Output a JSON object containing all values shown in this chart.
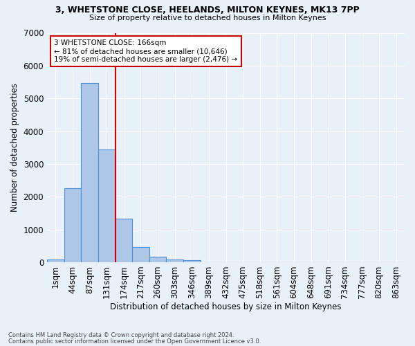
{
  "title_line1": "3, WHETSTONE CLOSE, HEELANDS, MILTON KEYNES, MK13 7PP",
  "title_line2": "Size of property relative to detached houses in Milton Keynes",
  "xlabel": "Distribution of detached houses by size in Milton Keynes",
  "ylabel": "Number of detached properties",
  "footnote1": "Contains HM Land Registry data © Crown copyright and database right 2024.",
  "footnote2": "Contains public sector information licensed under the Open Government Licence v3.0.",
  "bar_labels": [
    "1sqm",
    "44sqm",
    "87sqm",
    "131sqm",
    "174sqm",
    "217sqm",
    "260sqm",
    "303sqm",
    "346sqm",
    "389sqm",
    "432sqm",
    "475sqm",
    "518sqm",
    "561sqm",
    "604sqm",
    "648sqm",
    "691sqm",
    "734sqm",
    "777sqm",
    "820sqm",
    "863sqm"
  ],
  "bar_values": [
    75,
    2260,
    5470,
    3450,
    1330,
    460,
    175,
    80,
    55,
    0,
    0,
    0,
    0,
    0,
    0,
    0,
    0,
    0,
    0,
    0,
    0
  ],
  "bar_color": "#aec6e8",
  "bar_edge_color": "#4a90d9",
  "property_line_bin": 3.5,
  "annotation_text": "3 WHETSTONE CLOSE: 166sqm\n← 81% of detached houses are smaller (10,646)\n19% of semi-detached houses are larger (2,476) →",
  "annotation_box_color": "#ffffff",
  "annotation_box_edge": "#cc0000",
  "vline_color": "#cc0000",
  "ylim": [
    0,
    7000
  ],
  "yticks": [
    0,
    1000,
    2000,
    3000,
    4000,
    5000,
    6000,
    7000
  ],
  "bg_color": "#e8f0f8",
  "plot_bg_color": "#e8f0f8",
  "grid_color": "#ffffff"
}
